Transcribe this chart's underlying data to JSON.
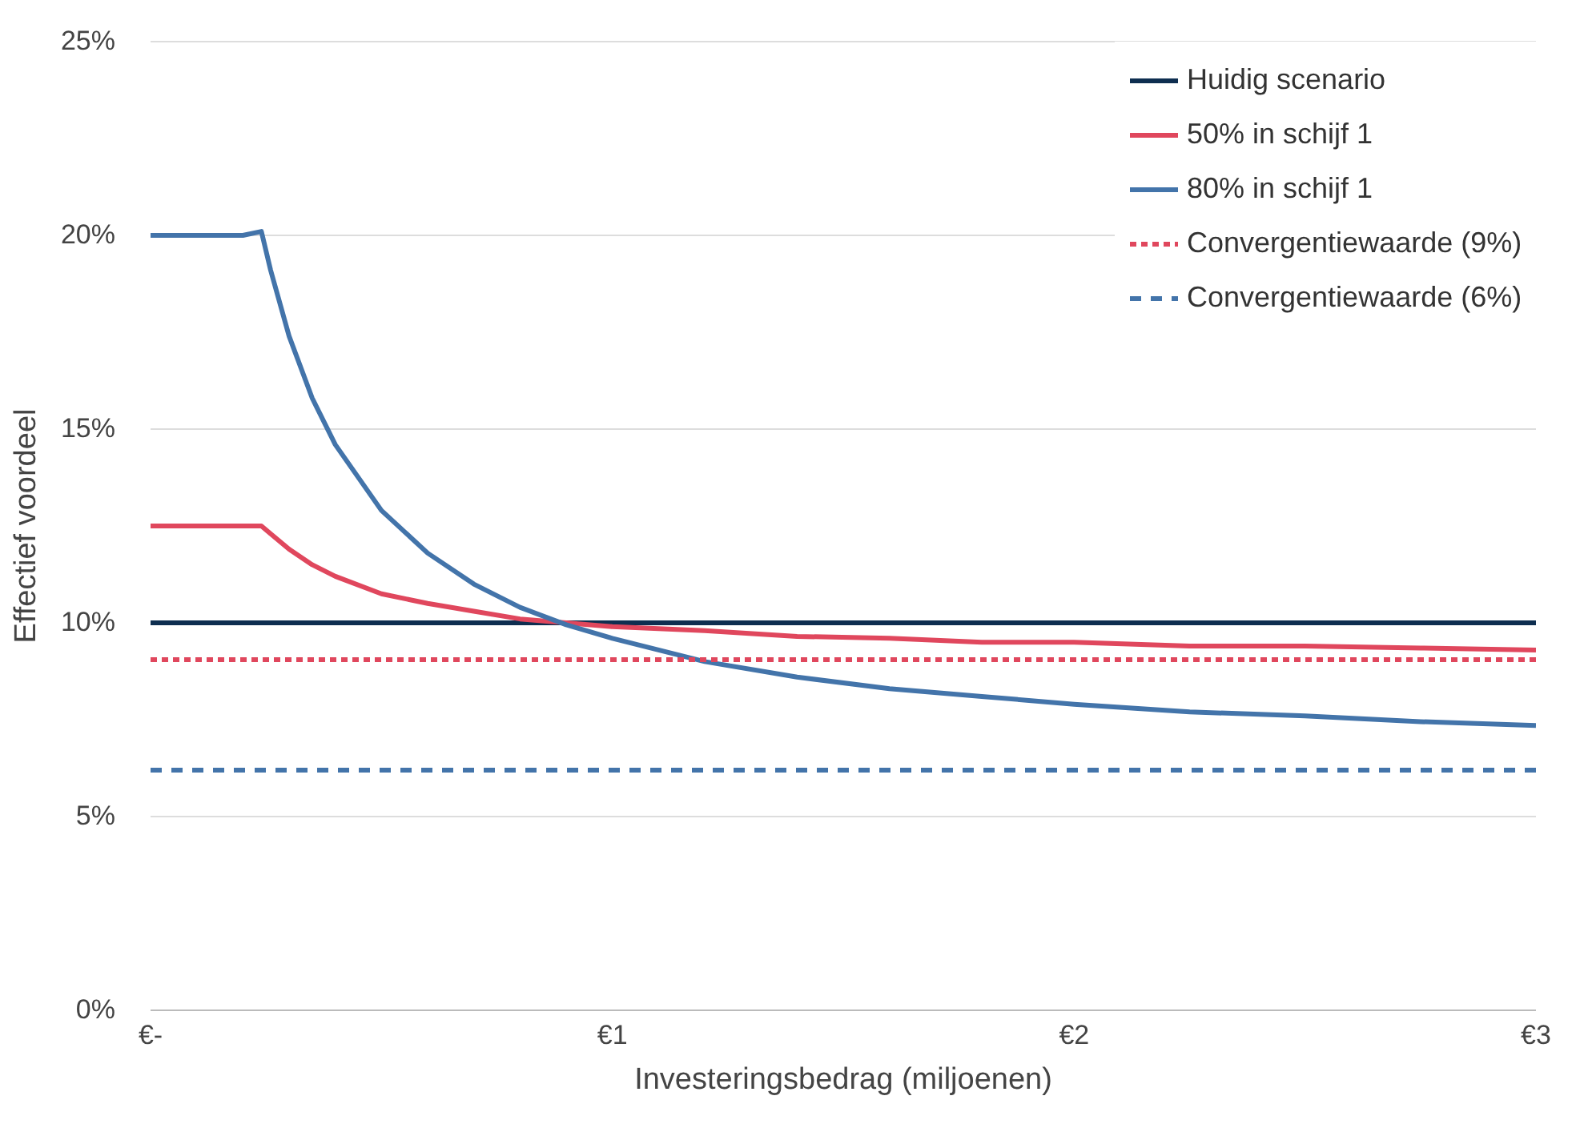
{
  "chart_data": {
    "type": "line",
    "xlabel": "Investeringsbedrag (miljoenen)",
    "ylabel": "Effectief voordeel",
    "x": [
      0,
      0.2,
      0.24,
      0.26,
      0.3,
      0.35,
      0.4,
      0.5,
      0.6,
      0.7,
      0.8,
      0.9,
      1.0,
      1.2,
      1.4,
      1.6,
      1.8,
      2.0,
      2.25,
      2.5,
      2.75,
      3.0
    ],
    "series": [
      {
        "name": "Huidig scenario",
        "color": "#0e2e50",
        "line_style": "solid",
        "values": [
          10,
          10,
          10,
          10,
          10,
          10,
          10,
          10,
          10,
          10,
          10,
          10,
          10,
          10,
          10,
          10,
          10,
          10,
          10,
          10,
          10,
          10
        ]
      },
      {
        "name": "50% in schijf 1",
        "color": "#e0475d",
        "line_style": "solid",
        "values": [
          12.5,
          12.5,
          12.5,
          12.3,
          11.9,
          11.5,
          11.2,
          10.75,
          10.5,
          10.3,
          10.1,
          10.0,
          9.9,
          9.8,
          9.65,
          9.6,
          9.5,
          9.5,
          9.4,
          9.4,
          9.35,
          9.3
        ]
      },
      {
        "name": "80% in schijf 1",
        "color": "#4374aa",
        "line_style": "solid",
        "values": [
          20,
          20,
          20.1,
          19.1,
          17.4,
          15.8,
          14.6,
          12.9,
          11.8,
          11.0,
          10.4,
          9.95,
          9.6,
          9.0,
          8.6,
          8.3,
          8.1,
          7.9,
          7.7,
          7.6,
          7.45,
          7.35
        ]
      },
      {
        "name": "Convergentiewaarde (9%)",
        "color": "#e0475d",
        "line_style": "dotted",
        "values": [
          9.05,
          9.05,
          9.05,
          9.05,
          9.05,
          9.05,
          9.05,
          9.05,
          9.05,
          9.05,
          9.05,
          9.05,
          9.05,
          9.05,
          9.05,
          9.05,
          9.05,
          9.05,
          9.05,
          9.05,
          9.05,
          9.05
        ]
      },
      {
        "name": "Convergentiewaarde (6%)",
        "color": "#4374aa",
        "line_style": "dashed",
        "values": [
          6.2,
          6.2,
          6.2,
          6.2,
          6.2,
          6.2,
          6.2,
          6.2,
          6.2,
          6.2,
          6.2,
          6.2,
          6.2,
          6.2,
          6.2,
          6.2,
          6.2,
          6.2,
          6.2,
          6.2,
          6.2,
          6.2
        ]
      }
    ],
    "xlim": [
      0,
      3
    ],
    "xticks": [
      {
        "value": 0,
        "label": "€-"
      },
      {
        "value": 1,
        "label": "€1"
      },
      {
        "value": 2,
        "label": "€2"
      },
      {
        "value": 3,
        "label": "€3"
      }
    ],
    "ylim": [
      0,
      25
    ],
    "yticks": [
      {
        "value": 0,
        "label": "0%"
      },
      {
        "value": 5,
        "label": "5%"
      },
      {
        "value": 10,
        "label": "10%"
      },
      {
        "value": 15,
        "label": "15%"
      },
      {
        "value": 20,
        "label": "20%"
      },
      {
        "value": 25,
        "label": "25%"
      }
    ],
    "grid": "y",
    "legend": "top right"
  }
}
